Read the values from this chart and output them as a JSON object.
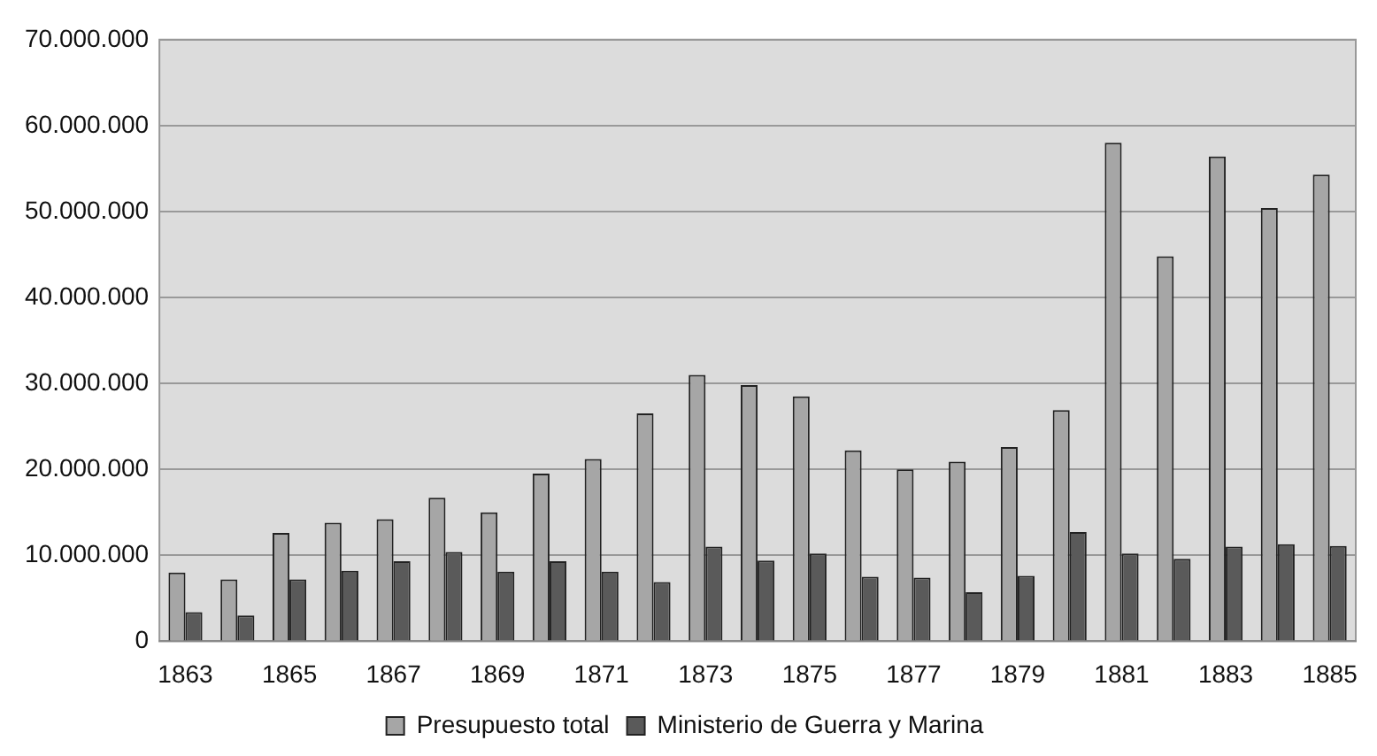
{
  "chart_data": {
    "type": "bar",
    "categories": [
      "1863",
      null,
      "1865",
      null,
      "1867",
      null,
      "1869",
      null,
      "1871",
      null,
      "1873",
      null,
      "1875",
      null,
      "1877",
      null,
      "1879",
      null,
      "1881",
      null,
      "1883",
      null,
      "1885"
    ],
    "series": [
      {
        "name": "Presupuesto total",
        "color": "#a6a6a6",
        "values": [
          8000000,
          7200000,
          12600000,
          13800000,
          14200000,
          16700000,
          15000000,
          19500000,
          21200000,
          26500000,
          31000000,
          29800000,
          28500000,
          22200000,
          20000000,
          20900000,
          22600000,
          26900000,
          58000000,
          44800000,
          56400000,
          50400000,
          54300000
        ]
      },
      {
        "name": "Ministerio de Guerra y Marina",
        "color": "#5a5a5a",
        "values": [
          3400000,
          3000000,
          7200000,
          8200000,
          9300000,
          10400000,
          8100000,
          9300000,
          8100000,
          6900000,
          11000000,
          9400000,
          10200000,
          7500000,
          7400000,
          5700000,
          7600000,
          12700000,
          10200000,
          9600000,
          11000000,
          11300000,
          11100000
        ]
      }
    ],
    "ylim": [
      0,
      70000000
    ],
    "yticks": [
      {
        "value": 0,
        "label": "0"
      },
      {
        "value": 10000000,
        "label": "10.000.000"
      },
      {
        "value": 20000000,
        "label": "20.000.000"
      },
      {
        "value": 30000000,
        "label": "30.000.000"
      },
      {
        "value": 40000000,
        "label": "40.000.000"
      },
      {
        "value": 50000000,
        "label": "50.000.000"
      },
      {
        "value": 60000000,
        "label": "60.000.000"
      },
      {
        "value": 70000000,
        "label": "70.000.000"
      }
    ],
    "grid": "y",
    "legend": "bottom"
  }
}
